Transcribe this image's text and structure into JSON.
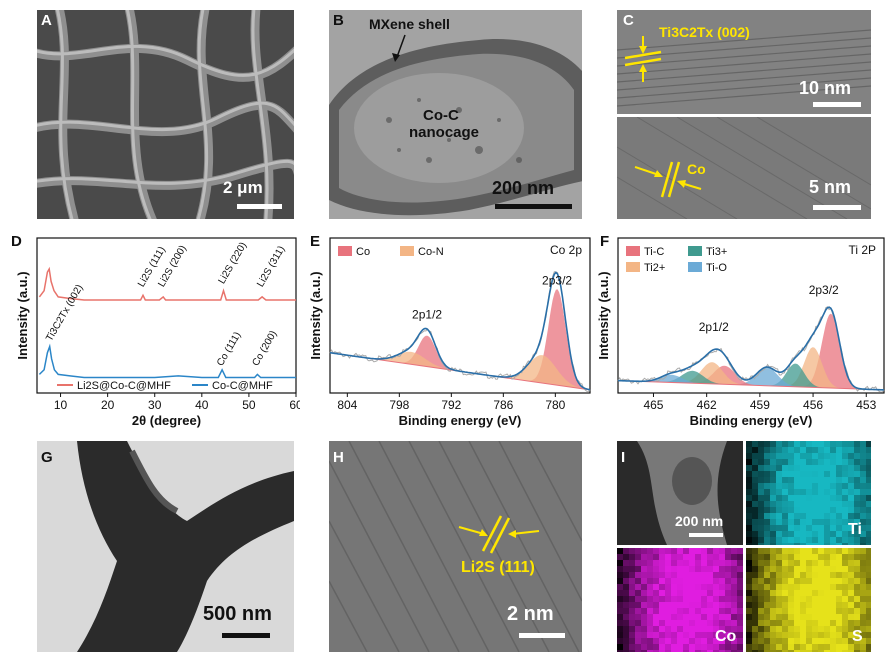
{
  "panels": {
    "A": {
      "letter": "A",
      "scale": "2 μm"
    },
    "B": {
      "letter": "B",
      "scale": "200 nm",
      "label_shell": "MXene shell",
      "label_core_1": "Co-C",
      "label_core_2": "nanocage"
    },
    "C": {
      "letter": "C",
      "scale_top": "10 nm",
      "scale_bottom": "5 nm",
      "label_top": "Ti3C2Tx (002)",
      "label_bottom": "Co"
    },
    "G": {
      "letter": "G",
      "scale": "500 nm"
    },
    "H": {
      "letter": "H",
      "scale": "2 nm",
      "label": "Li2S (111)"
    },
    "I": {
      "letter": "I",
      "scale": "200 nm",
      "map_ti": "Ti",
      "map_co": "Co",
      "map_s": "S",
      "colors": {
        "ti": "#17b8c2",
        "co": "#e01de0",
        "s": "#e6e21a"
      }
    }
  },
  "chart_data": [
    {
      "panel": "D",
      "type": "line",
      "xlabel": "2θ (degree)",
      "ylabel": "Intensity (a.u.)",
      "xlim": [
        5,
        60
      ],
      "xticks": [
        10,
        20,
        30,
        40,
        50,
        60
      ],
      "series": [
        {
          "name": "Li2S@Co-C@MHF",
          "color": "#e8736b",
          "x": [
            5.5,
            6.5,
            7.2,
            7.6,
            8.0,
            8.6,
            9.5,
            12,
            15,
            20,
            26,
            27,
            27.5,
            28,
            29,
            31,
            31.8,
            32.3,
            33,
            36,
            40,
            44,
            44.6,
            45.2,
            46,
            50,
            52,
            52.8,
            53.6,
            55,
            58,
            60
          ],
          "y": [
            0.62,
            0.66,
            0.78,
            0.8,
            0.72,
            0.66,
            0.62,
            0.61,
            0.6,
            0.6,
            0.6,
            0.6,
            0.63,
            0.6,
            0.6,
            0.6,
            0.62,
            0.6,
            0.6,
            0.6,
            0.6,
            0.6,
            0.66,
            0.6,
            0.6,
            0.6,
            0.6,
            0.62,
            0.6,
            0.6,
            0.6,
            0.6
          ]
        },
        {
          "name": "Co-C@MHF",
          "color": "#2b86c8",
          "x": [
            5.5,
            6.5,
            7.2,
            7.7,
            8.1,
            8.7,
            9.5,
            12,
            15,
            20,
            26,
            30,
            35,
            40,
            43.5,
            44.3,
            45.1,
            46,
            50,
            51.2,
            51.8,
            52.5,
            55,
            58,
            60
          ],
          "y": [
            0.12,
            0.15,
            0.26,
            0.3,
            0.22,
            0.15,
            0.12,
            0.11,
            0.1,
            0.1,
            0.1,
            0.1,
            0.11,
            0.1,
            0.1,
            0.15,
            0.1,
            0.1,
            0.1,
            0.1,
            0.12,
            0.1,
            0.1,
            0.1,
            0.1
          ]
        }
      ],
      "annotations": [
        "Li2S (111)",
        "Li2S (200)",
        "Li2S (220)",
        "Li2S (311)",
        "Ti3C2Tx (002)",
        "Co (111)",
        "Co (200)"
      ],
      "legend": "bottom"
    },
    {
      "panel": "E",
      "type": "line",
      "title": "Co 2p",
      "xlabel": "Binding energy (eV)",
      "ylabel": "Intensity (a.u.)",
      "xlim": [
        806,
        776
      ],
      "xticks": [
        804,
        798,
        792,
        786,
        780
      ],
      "legend_entries": [
        {
          "name": "Co",
          "color": "#e8737d"
        },
        {
          "name": "Co-N",
          "color": "#f3b585"
        }
      ],
      "annotations": [
        "2p1/2",
        "2p3/2"
      ],
      "peaks": [
        {
          "name": "Co 2p3/2",
          "center": 779.8,
          "height": 0.62,
          "width": 1.0,
          "color": "#e8737d"
        },
        {
          "name": "Co-N 2p3/2",
          "center": 781.5,
          "height": 0.18,
          "width": 1.6,
          "color": "#f3b585"
        },
        {
          "name": "Co 2p1/2",
          "center": 794.8,
          "height": 0.2,
          "width": 1.0,
          "color": "#e8737d"
        },
        {
          "name": "Co-N 2p1/2",
          "center": 796.6,
          "height": 0.08,
          "width": 1.6,
          "color": "#f3b585"
        }
      ],
      "baseline": {
        "start": 0.26,
        "end": 0.02
      }
    },
    {
      "panel": "F",
      "type": "line",
      "title": "Ti 2P",
      "xlabel": "Binding energy (eV)",
      "ylabel": "Intensity (a.u.)",
      "xlim": [
        467,
        452
      ],
      "xticks": [
        465,
        462,
        459,
        456,
        453
      ],
      "legend_entries": [
        {
          "name": "Ti-C",
          "color": "#e8737d"
        },
        {
          "name": "Ti3+",
          "color": "#3f9a8f"
        },
        {
          "name": "Ti2+",
          "color": "#f3b585"
        },
        {
          "name": "Ti-O",
          "color": "#6baad6"
        }
      ],
      "annotations": [
        "2p1/2",
        "2p3/2"
      ],
      "peaks": [
        {
          "name": "Ti-C 2p3/2",
          "center": 455.0,
          "height": 0.48,
          "width": 0.5,
          "color": "#e8737d"
        },
        {
          "name": "Ti2+ 2p3/2",
          "center": 456.0,
          "height": 0.26,
          "width": 0.5,
          "color": "#f3b585"
        },
        {
          "name": "Ti3+ 2p3/2",
          "center": 457.0,
          "height": 0.15,
          "width": 0.5,
          "color": "#3f9a8f"
        },
        {
          "name": "Ti-O 2p3/2",
          "center": 458.6,
          "height": 0.12,
          "width": 0.6,
          "color": "#6baad6"
        },
        {
          "name": "Ti-C 2p1/2",
          "center": 461.0,
          "height": 0.12,
          "width": 0.6,
          "color": "#e8737d"
        },
        {
          "name": "Ti2+ 2p1/2",
          "center": 461.7,
          "height": 0.14,
          "width": 0.6,
          "color": "#f3b585"
        },
        {
          "name": "Ti3+ 2p1/2",
          "center": 462.8,
          "height": 0.08,
          "width": 0.6,
          "color": "#3f9a8f"
        },
        {
          "name": "Ti-O 2p1/2",
          "center": 464.0,
          "height": 0.05,
          "width": 0.6,
          "color": "#6baad6"
        }
      ],
      "baseline": {
        "start": 0.08,
        "end": 0.02
      }
    }
  ]
}
